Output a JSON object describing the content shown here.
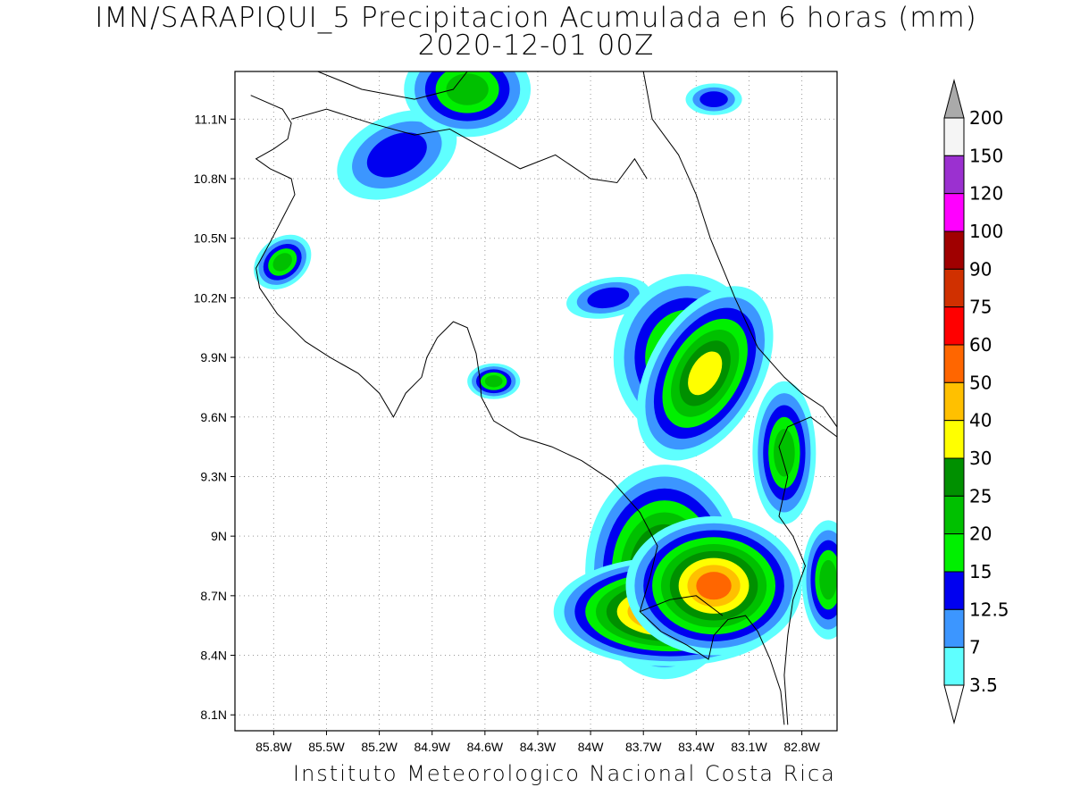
{
  "title": {
    "line1": "IMN/SARAPIQUI_5 Precipitacion Acumulada en 6 horas (mm)",
    "line2": "2020-12-01 00Z"
  },
  "footer": "Instituto Meteorologico Nacional Costa Rica",
  "map": {
    "lon_range": [
      -86.02,
      -82.6
    ],
    "lat_range": [
      8.02,
      11.34
    ],
    "lon_ticks": [
      {
        "value": -85.8,
        "label": "85.8W"
      },
      {
        "value": -85.5,
        "label": "85.5W"
      },
      {
        "value": -85.2,
        "label": "85.2W"
      },
      {
        "value": -84.9,
        "label": "84.9W"
      },
      {
        "value": -84.6,
        "label": "84.6W"
      },
      {
        "value": -84.3,
        "label": "84.3W"
      },
      {
        "value": -84.0,
        "label": "84W"
      },
      {
        "value": -83.7,
        "label": "83.7W"
      },
      {
        "value": -83.4,
        "label": "83.4W"
      },
      {
        "value": -83.1,
        "label": "83.1W"
      },
      {
        "value": -82.8,
        "label": "82.8W"
      }
    ],
    "lat_ticks": [
      {
        "value": 8.1,
        "label": "8.1N"
      },
      {
        "value": 8.4,
        "label": "8.4N"
      },
      {
        "value": 8.7,
        "label": "8.7N"
      },
      {
        "value": 9.0,
        "label": "9N"
      },
      {
        "value": 9.3,
        "label": "9.3N"
      },
      {
        "value": 9.6,
        "label": "9.6N"
      },
      {
        "value": 9.9,
        "label": "9.9N"
      },
      {
        "value": 10.2,
        "label": "10.2N"
      },
      {
        "value": 10.5,
        "label": "10.5N"
      },
      {
        "value": 10.8,
        "label": "10.8N"
      },
      {
        "value": 11.1,
        "label": "11.1N"
      }
    ],
    "coastline": [
      [
        -85.93,
        11.22
      ],
      [
        -85.75,
        11.15
      ],
      [
        -85.7,
        11.08
      ],
      [
        -85.72,
        11.0
      ],
      [
        -85.8,
        10.95
      ],
      [
        -85.9,
        10.9
      ],
      [
        -85.82,
        10.85
      ],
      [
        -85.7,
        10.8
      ],
      [
        -85.68,
        10.72
      ],
      [
        -85.75,
        10.6
      ],
      [
        -85.82,
        10.48
      ],
      [
        -85.9,
        10.35
      ],
      [
        -85.88,
        10.25
      ],
      [
        -85.78,
        10.12
      ],
      [
        -85.62,
        9.98
      ],
      [
        -85.48,
        9.9
      ],
      [
        -85.32,
        9.82
      ],
      [
        -85.2,
        9.72
      ],
      [
        -85.12,
        9.6
      ],
      [
        -85.05,
        9.72
      ],
      [
        -84.96,
        9.8
      ],
      [
        -84.93,
        9.9
      ],
      [
        -84.87,
        10.0
      ],
      [
        -84.78,
        10.08
      ],
      [
        -84.7,
        10.05
      ],
      [
        -84.65,
        9.92
      ],
      [
        -84.63,
        9.8
      ],
      [
        -84.62,
        9.7
      ],
      [
        -84.55,
        9.58
      ],
      [
        -84.4,
        9.5
      ],
      [
        -84.22,
        9.45
      ],
      [
        -84.05,
        9.38
      ],
      [
        -83.88,
        9.28
      ],
      [
        -83.72,
        9.12
      ],
      [
        -83.62,
        8.95
      ],
      [
        -83.66,
        8.8
      ],
      [
        -83.72,
        8.62
      ],
      [
        -83.6,
        8.52
      ],
      [
        -83.45,
        8.45
      ],
      [
        -83.33,
        8.38
      ],
      [
        -83.3,
        8.5
      ],
      [
        -83.22,
        8.58
      ],
      [
        -83.12,
        8.6
      ],
      [
        -83.05,
        8.52
      ],
      [
        -82.98,
        8.38
      ],
      [
        -82.92,
        8.22
      ],
      [
        -82.9,
        8.05
      ]
    ],
    "caribbean_coast": [
      [
        -82.6,
        9.55
      ],
      [
        -82.68,
        9.65
      ],
      [
        -82.8,
        9.72
      ],
      [
        -82.9,
        9.8
      ],
      [
        -83.05,
        9.95
      ],
      [
        -83.18,
        10.2
      ],
      [
        -83.32,
        10.5
      ],
      [
        -83.4,
        10.72
      ],
      [
        -83.5,
        10.92
      ],
      [
        -83.65,
        11.1
      ],
      [
        -83.7,
        11.34
      ]
    ],
    "border_north": [
      [
        -85.7,
        11.1
      ],
      [
        -85.5,
        11.15
      ],
      [
        -85.25,
        11.08
      ],
      [
        -85.0,
        11.02
      ],
      [
        -84.8,
        11.05
      ],
      [
        -84.6,
        10.95
      ],
      [
        -84.4,
        10.85
      ],
      [
        -84.2,
        10.92
      ],
      [
        -84.0,
        10.8
      ],
      [
        -83.85,
        10.78
      ],
      [
        -83.75,
        10.9
      ],
      [
        -83.68,
        10.8
      ]
    ],
    "lake_shore": [
      [
        -85.55,
        11.34
      ],
      [
        -85.3,
        11.25
      ],
      [
        -85.0,
        11.2
      ],
      [
        -84.78,
        11.25
      ],
      [
        -84.7,
        11.34
      ]
    ],
    "border_south": [
      [
        -82.6,
        9.5
      ],
      [
        -82.75,
        9.6
      ],
      [
        -82.88,
        9.55
      ],
      [
        -82.93,
        9.45
      ],
      [
        -82.88,
        9.3
      ],
      [
        -82.93,
        9.1
      ],
      [
        -82.85,
        9.0
      ],
      [
        -82.78,
        8.85
      ],
      [
        -82.85,
        8.68
      ],
      [
        -82.88,
        8.5
      ],
      [
        -82.9,
        8.3
      ],
      [
        -82.88,
        8.05
      ]
    ],
    "gulf_coast": [
      [
        -83.72,
        8.62
      ],
      [
        -83.55,
        8.68
      ],
      [
        -83.4,
        8.7
      ],
      [
        -83.25,
        8.6
      ]
    ],
    "rain_cells": [
      {
        "lon": -85.1,
        "lat": 10.92,
        "rx": 0.18,
        "ry": 0.1,
        "rot": -25,
        "level": 12.5
      },
      {
        "lon": -84.7,
        "lat": 11.25,
        "rx": 0.12,
        "ry": 0.08,
        "rot": 0,
        "level": 20
      },
      {
        "lon": -85.75,
        "lat": 10.38,
        "rx": 0.06,
        "ry": 0.04,
        "rot": -40,
        "level": 20
      },
      {
        "lon": -83.9,
        "lat": 10.2,
        "rx": 0.12,
        "ry": 0.05,
        "rot": -10,
        "level": 12.5
      },
      {
        "lon": -83.3,
        "lat": 11.2,
        "rx": 0.08,
        "ry": 0.04,
        "rot": 0,
        "level": 12.5
      },
      {
        "lon": -84.55,
        "lat": 9.78,
        "rx": 0.05,
        "ry": 0.03,
        "rot": 0,
        "level": 20
      },
      {
        "lon": -83.45,
        "lat": 9.9,
        "rx": 0.12,
        "ry": 0.12,
        "rot": 0,
        "level": 25
      },
      {
        "lon": -83.35,
        "lat": 9.82,
        "rx": 0.08,
        "ry": 0.12,
        "rot": 30,
        "level": 30
      },
      {
        "lon": -83.58,
        "lat": 8.82,
        "rx": 0.1,
        "ry": 0.12,
        "rot": 0,
        "level": 40
      },
      {
        "lon": -83.55,
        "lat": 8.62,
        "rx": 0.12,
        "ry": 0.05,
        "rot": 0,
        "level": 60
      },
      {
        "lon": -83.3,
        "lat": 8.75,
        "rx": 0.1,
        "ry": 0.07,
        "rot": 0,
        "level": 50
      },
      {
        "lon": -82.9,
        "lat": 9.42,
        "rx": 0.06,
        "ry": 0.12,
        "rot": 0,
        "level": 20
      },
      {
        "lon": -82.65,
        "lat": 8.78,
        "rx": 0.05,
        "ry": 0.1,
        "rot": 0,
        "level": 20
      }
    ]
  },
  "colorbar": {
    "levels": [
      {
        "label": "200",
        "color": "#f5f5f5"
      },
      {
        "label": "150",
        "color": "#9b30d0"
      },
      {
        "label": "120",
        "color": "#ff00ff"
      },
      {
        "label": "100",
        "color": "#a00000"
      },
      {
        "label": "90",
        "color": "#d03000"
      },
      {
        "label": "75",
        "color": "#ff0000"
      },
      {
        "label": "60",
        "color": "#ff6600"
      },
      {
        "label": "50",
        "color": "#ffc000"
      },
      {
        "label": "40",
        "color": "#ffff00"
      },
      {
        "label": "30",
        "color": "#009000"
      },
      {
        "label": "25",
        "color": "#00c000"
      },
      {
        "label": "20",
        "color": "#00f000"
      },
      {
        "label": "15",
        "color": "#0000f0"
      },
      {
        "label": "12.5",
        "color": "#3c96ff"
      },
      {
        "label": "7",
        "color": "#5fffff"
      },
      {
        "label": "3.5",
        "color": "#ffffff"
      }
    ],
    "top_triangle_color": "#aaaaaa",
    "bottom_triangle_color": "#ffffff"
  }
}
